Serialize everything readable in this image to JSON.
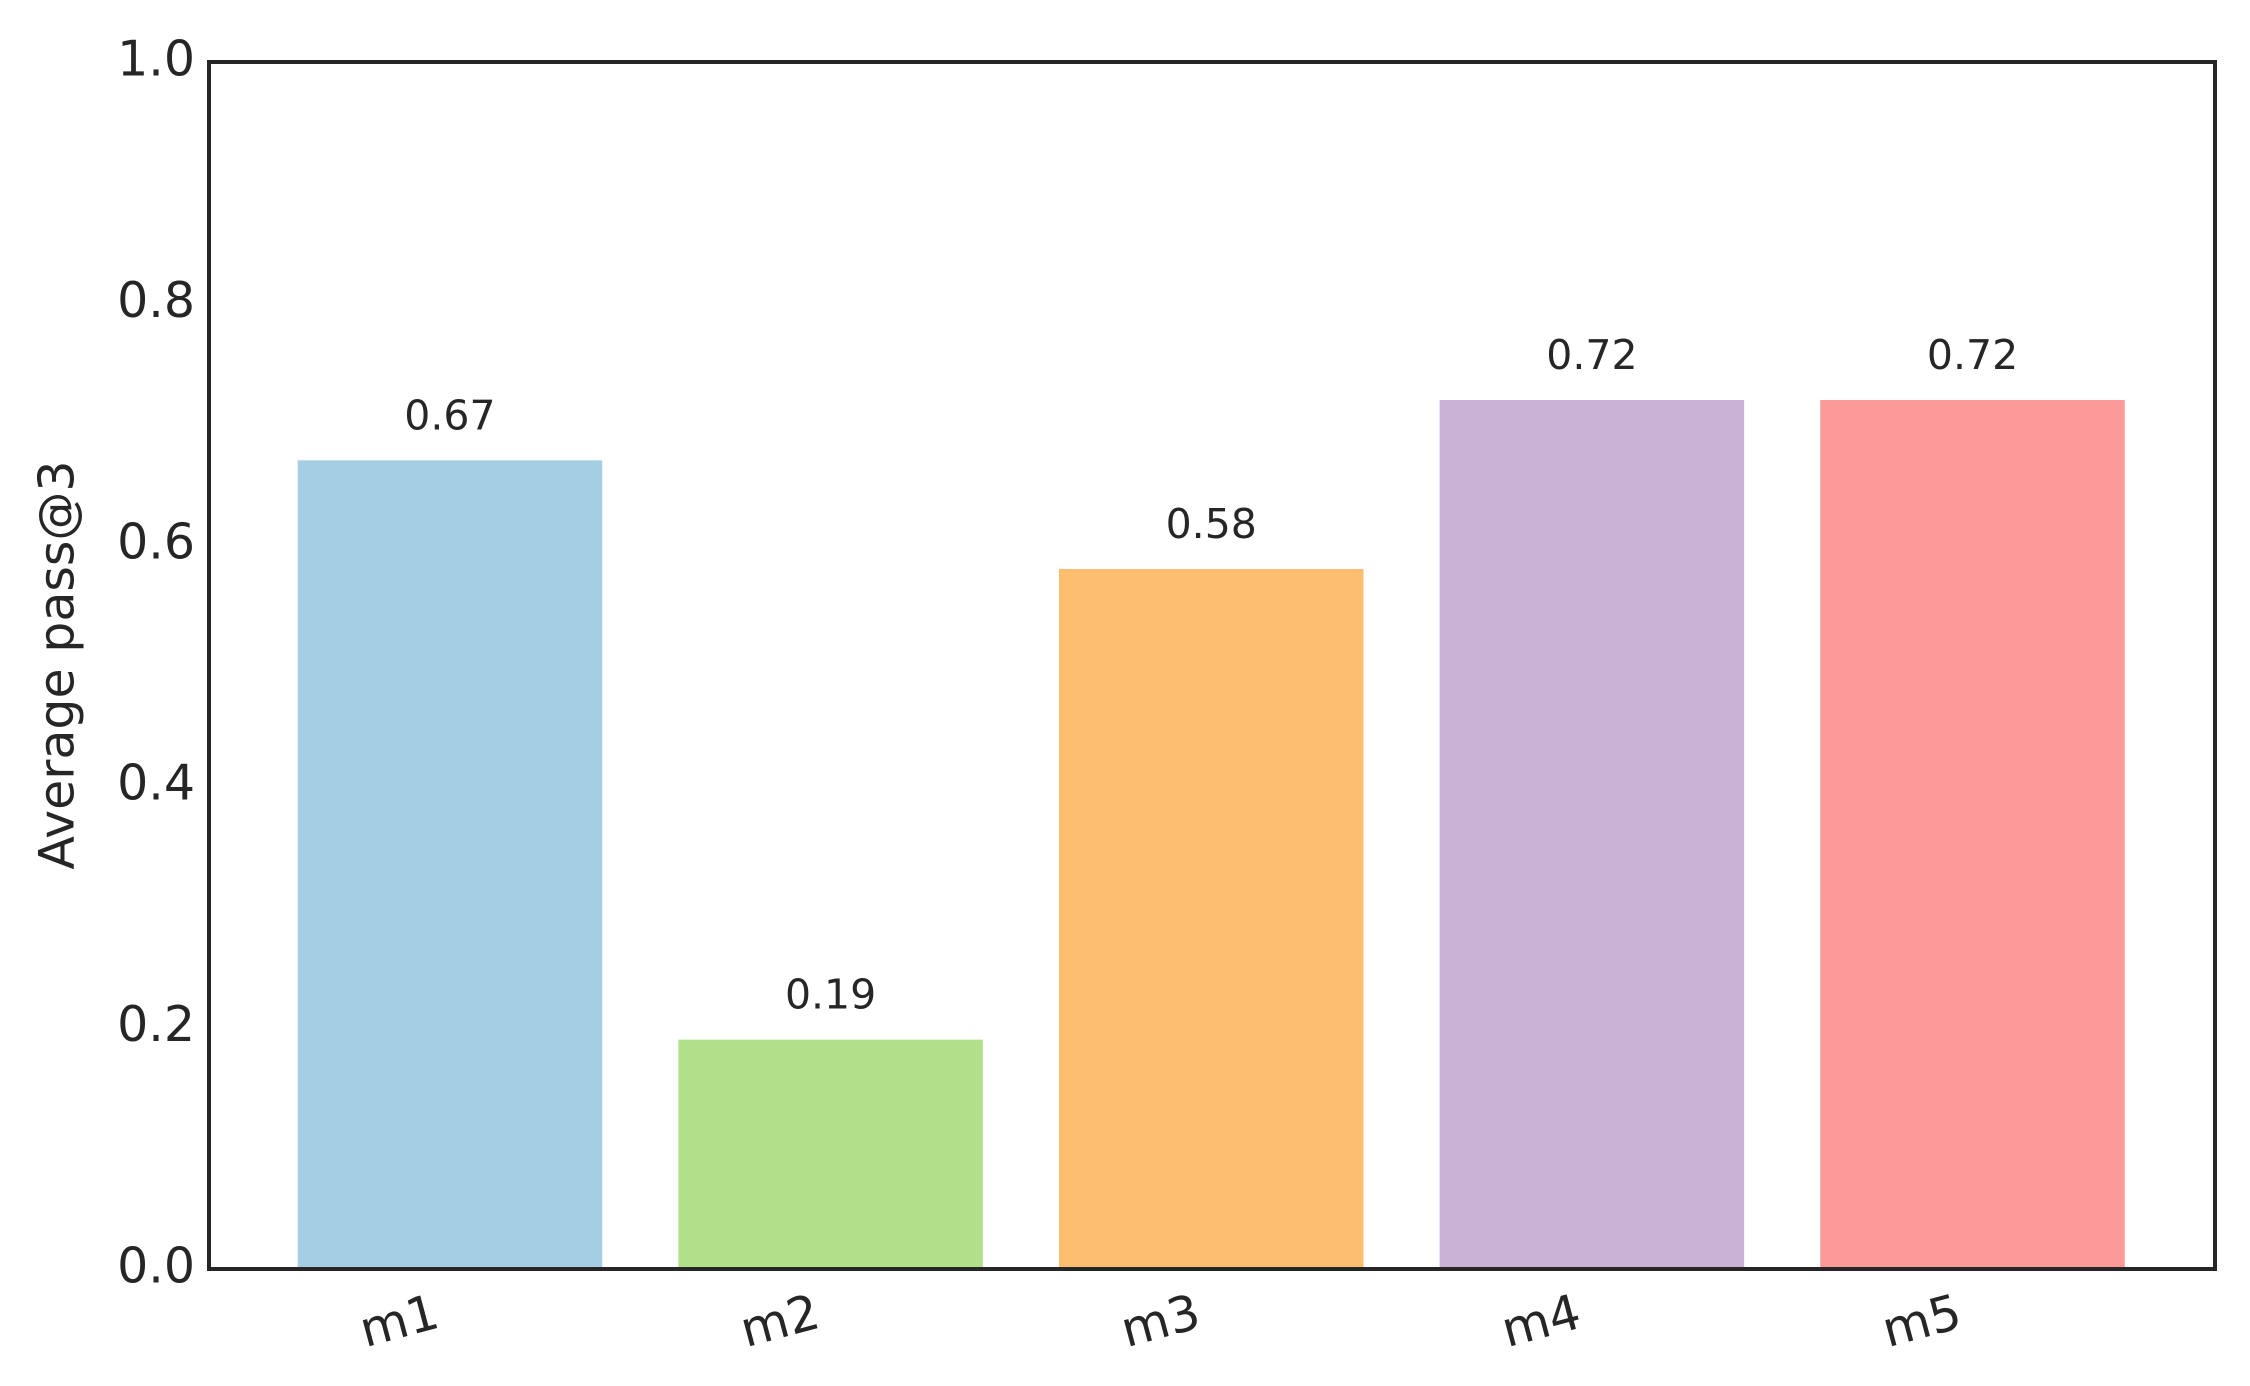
{
  "chart_data": {
    "type": "bar",
    "categories": [
      "m1",
      "m2",
      "m3",
      "m4",
      "m5"
    ],
    "values": [
      0.67,
      0.19,
      0.58,
      0.72,
      0.72
    ],
    "colors": [
      "#a6cee3",
      "#b2df8a",
      "#fdbf6f",
      "#cab2d6",
      "#fb9a99"
    ],
    "y_label": "Average pass@3",
    "ylim": [
      0,
      1
    ],
    "yticks": [
      {
        "value": 0,
        "label": "0.0"
      },
      0.2,
      0.4,
      0.6,
      0.8,
      {
        "value": 1,
        "label": "1.0"
      }
    ],
    "grid": false
  }
}
